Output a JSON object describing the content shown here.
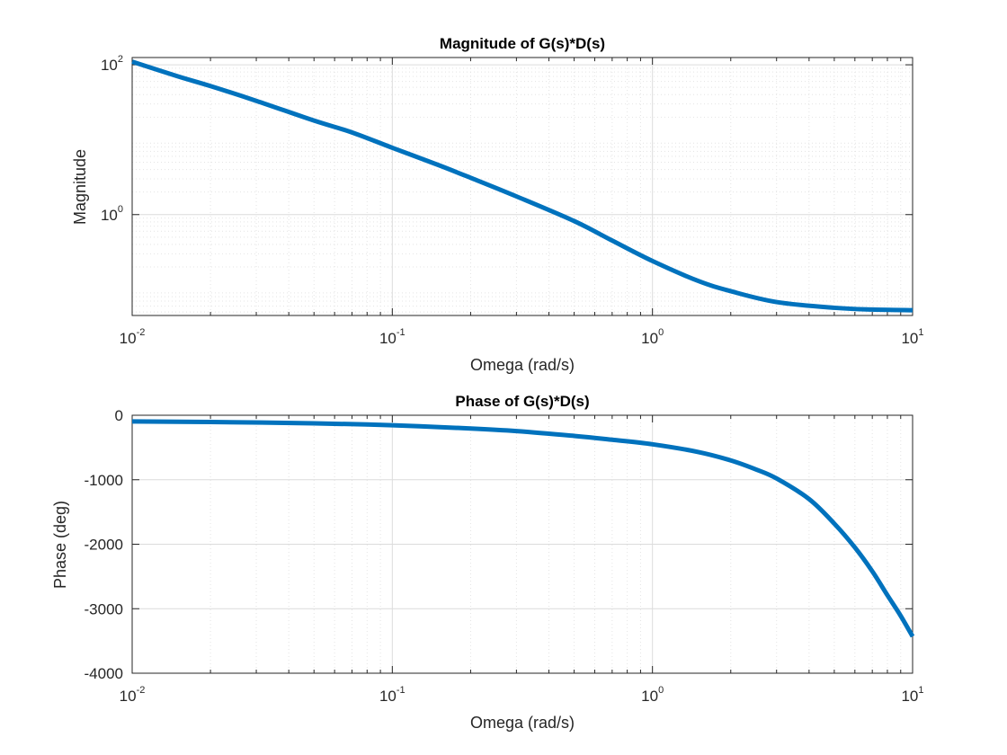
{
  "chart_data": [
    {
      "type": "line",
      "title": "Magnitude of G(s)*D(s)",
      "xlabel": "Omega (rad/s)",
      "ylabel": "Magnitude",
      "xscale": "log",
      "yscale": "log",
      "xlim": [
        0.01,
        10
      ],
      "ylim": [
        0.045,
        125
      ],
      "grid": true,
      "minor_grid": true,
      "line_color": "#0072BD",
      "x_ticks": [
        {
          "base": "10",
          "exp": "-2",
          "value": 0.01
        },
        {
          "base": "10",
          "exp": "-1",
          "value": 0.1
        },
        {
          "base": "10",
          "exp": "0",
          "value": 1
        },
        {
          "base": "10",
          "exp": "1",
          "value": 10
        }
      ],
      "y_ticks": [
        {
          "base": "10",
          "exp": "0",
          "value": 1
        },
        {
          "base": "10",
          "exp": "2",
          "value": 100
        }
      ],
      "series": [
        {
          "x": [
            0.01,
            0.015,
            0.02,
            0.03,
            0.05,
            0.07,
            0.1,
            0.15,
            0.2,
            0.3,
            0.5,
            0.7,
            1.0,
            1.5,
            2.0,
            3.0,
            5.0,
            7.0,
            10.0
          ],
          "y": [
            110,
            70,
            52,
            33,
            18,
            12.5,
            7.8,
            4.6,
            3.1,
            1.75,
            0.82,
            0.45,
            0.24,
            0.13,
            0.095,
            0.068,
            0.057,
            0.054,
            0.053
          ]
        }
      ]
    },
    {
      "type": "line",
      "title": "Phase of G(s)*D(s)",
      "xlabel": "Omega (rad/s)",
      "ylabel": "Phase (deg)",
      "xscale": "log",
      "xlim": [
        0.01,
        10
      ],
      "ylim": [
        -4000,
        0
      ],
      "grid": true,
      "minor_grid": true,
      "line_color": "#0072BD",
      "x_ticks": [
        {
          "base": "10",
          "exp": "-2",
          "value": 0.01
        },
        {
          "base": "10",
          "exp": "-1",
          "value": 0.1
        },
        {
          "base": "10",
          "exp": "0",
          "value": 1
        },
        {
          "base": "10",
          "exp": "1",
          "value": 10
        }
      ],
      "y_ticks": [
        {
          "label": "0",
          "value": 0
        },
        {
          "label": "-1000",
          "value": -1000
        },
        {
          "label": "-2000",
          "value": -2000
        },
        {
          "label": "-3000",
          "value": -3000
        },
        {
          "label": "-4000",
          "value": -4000
        }
      ],
      "series": [
        {
          "x": [
            0.01,
            0.02,
            0.05,
            0.1,
            0.2,
            0.3,
            0.5,
            0.7,
            1.0,
            1.5,
            2.0,
            2.5,
            3.0,
            4.0,
            5.0,
            6.0,
            7.0,
            8.0,
            9.0,
            10.0
          ],
          "y": [
            -95,
            -105,
            -125,
            -155,
            -205,
            -245,
            -320,
            -380,
            -450,
            -570,
            -700,
            -840,
            -980,
            -1300,
            -1680,
            -2050,
            -2420,
            -2790,
            -3110,
            -3430
          ]
        }
      ]
    }
  ]
}
